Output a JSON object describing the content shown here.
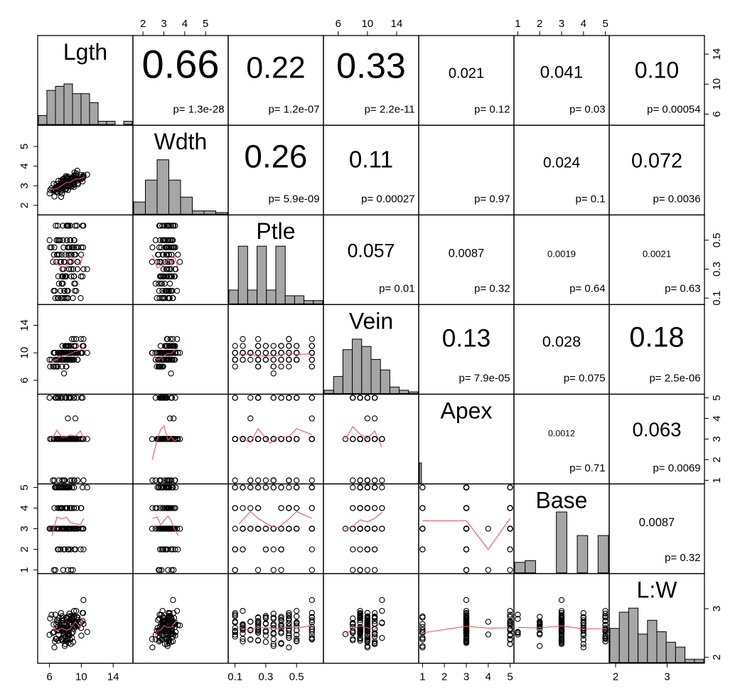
{
  "chart_data": {
    "type": "scatter",
    "title": "",
    "variables": [
      {
        "name": "Lgth",
        "range": [
          5,
          16
        ],
        "ticks": [
          6,
          10,
          14
        ],
        "histogram": [
          0.11,
          0.42,
          0.47,
          0.5,
          0.38,
          0.38,
          0.27,
          0.04,
          0.04,
          0.0,
          0.04
        ]
      },
      {
        "name": "Wdth",
        "range": [
          1.7,
          5.9
        ],
        "ticks": [
          2,
          3,
          4,
          5
        ],
        "histogram": [
          0.15,
          0.42,
          0.67,
          0.42,
          0.21,
          0.04,
          0.04,
          0.02
        ]
      },
      {
        "name": "Ptle",
        "range": [
          0.08,
          0.65
        ],
        "ticks": [
          0.1,
          0.3,
          0.5
        ],
        "histogram": [
          0.17,
          0.71,
          0.17,
          0.71,
          0.17,
          0.71,
          0.1,
          0.1,
          0.04,
          0.04
        ]
      },
      {
        "name": "Vein",
        "range": [
          4.5,
          16.5
        ],
        "ticks": [
          6,
          10,
          14
        ],
        "histogram": [
          0.04,
          0.21,
          0.54,
          0.67,
          0.58,
          0.42,
          0.29,
          0.08,
          0.04,
          0.02
        ]
      },
      {
        "name": "Apex",
        "range": [
          1,
          5
        ],
        "ticks": [
          1,
          2,
          3,
          4,
          5
        ],
        "histogram": [
          0.25,
          0.0,
          0.0,
          0.0,
          0.0,
          0.0,
          0.0,
          0.0,
          0.0,
          0.0,
          0.0,
          0.0,
          0.0,
          0.0,
          0.0,
          0.0,
          0.0,
          0.0,
          0.0,
          0.0,
          0.0,
          0.0,
          0.0,
          0.0,
          0.0,
          0.0,
          0.0,
          0.0,
          0.0,
          0.0,
          0.0,
          0.0,
          0.0,
          0.0,
          0.0,
          0.0,
          0.0,
          0.0,
          0.0,
          0.0,
          0.0,
          0.0,
          0.0,
          0.0,
          0.0,
          0.0
        ]
      },
      {
        "name": "Base",
        "range": [
          1,
          5
        ],
        "ticks": [
          1,
          2,
          3,
          4,
          5
        ],
        "histogram": [
          0.13,
          0.15,
          0.0,
          0.0,
          0.75,
          0.0,
          0.46,
          0.0,
          0.46
        ]
      },
      {
        "name": "L:W",
        "range": [
          1.95,
          3.65
        ],
        "ticks": [
          2.0,
          3.0
        ],
        "histogram": [
          0.42,
          0.62,
          0.67,
          0.35,
          0.52,
          0.38,
          0.25,
          0.19,
          0.04,
          0.04
        ]
      }
    ],
    "correlations": [
      {
        "pair": [
          "Lgth",
          "Wdth"
        ],
        "r": "0.66",
        "p": "p= 1.3e-28"
      },
      {
        "pair": [
          "Lgth",
          "Ptle"
        ],
        "r": "0.22",
        "p": "p= 1.2e-07"
      },
      {
        "pair": [
          "Lgth",
          "Vein"
        ],
        "r": "0.33",
        "p": "p= 2.2e-11"
      },
      {
        "pair": [
          "Lgth",
          "Apex"
        ],
        "r": "0.021",
        "p": "p= 0.12"
      },
      {
        "pair": [
          "Lgth",
          "Base"
        ],
        "r": "0.041",
        "p": "p= 0.03"
      },
      {
        "pair": [
          "Lgth",
          "L:W"
        ],
        "r": "0.10",
        "p": "p= 0.00054"
      },
      {
        "pair": [
          "Wdth",
          "Ptle"
        ],
        "r": "0.26",
        "p": "p= 5.9e-09"
      },
      {
        "pair": [
          "Wdth",
          "Vein"
        ],
        "r": "0.11",
        "p": "p= 0.00027"
      },
      {
        "pair": [
          "Wdth",
          "Apex"
        ],
        "r": "",
        "p": "p= 0.97"
      },
      {
        "pair": [
          "Wdth",
          "Base"
        ],
        "r": "0.024",
        "p": "p= 0.1"
      },
      {
        "pair": [
          "Wdth",
          "L:W"
        ],
        "r": "0.072",
        "p": "p= 0.0036"
      },
      {
        "pair": [
          "Ptle",
          "Vein"
        ],
        "r": "0.057",
        "p": "p= 0.01"
      },
      {
        "pair": [
          "Ptle",
          "Apex"
        ],
        "r": "0.0087",
        "p": "p= 0.32"
      },
      {
        "pair": [
          "Ptle",
          "Base"
        ],
        "r": "0.0019",
        "p": "p= 0.64"
      },
      {
        "pair": [
          "Ptle",
          "L:W"
        ],
        "r": "0.0021",
        "p": "p= 0.63"
      },
      {
        "pair": [
          "Vein",
          "Apex"
        ],
        "r": "0.13",
        "p": "p= 7.9e-05"
      },
      {
        "pair": [
          "Vein",
          "Base"
        ],
        "r": "0.028",
        "p": "p= 0.075"
      },
      {
        "pair": [
          "Vein",
          "L:W"
        ],
        "r": "0.18",
        "p": "p= 2.5e-06"
      },
      {
        "pair": [
          "Apex",
          "Base"
        ],
        "r": "0.0012",
        "p": "p= 0.71"
      },
      {
        "pair": [
          "Apex",
          "L:W"
        ],
        "r": "0.063",
        "p": "p= 0.0069"
      },
      {
        "pair": [
          "Base",
          "L:W"
        ],
        "r": "0.0087",
        "p": "p= 0.32"
      }
    ],
    "grid": false,
    "colors": {
      "points": "#000000",
      "bars": "#a6a6a6",
      "smooth": "#e8556b",
      "frame": "#000000"
    }
  }
}
